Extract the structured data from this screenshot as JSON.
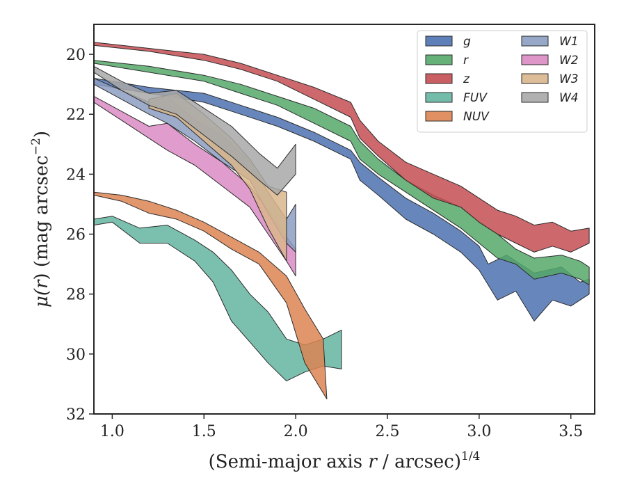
{
  "chart_data": {
    "type": "area",
    "title": "",
    "xlabel_parts": [
      "(Semi-major axis ",
      "r",
      " / arcsec)",
      "1/4"
    ],
    "ylabel_parts": [
      "μ(",
      "r",
      ") (mag arcsec",
      "−2",
      ")"
    ],
    "xlim": [
      0.9,
      3.63
    ],
    "ylim": [
      32,
      19
    ],
    "y_inverted": true,
    "xticks": [
      1.0,
      1.5,
      2.0,
      2.5,
      3.0,
      3.5
    ],
    "xtick_labels": [
      "1.0",
      "1.5",
      "2.0",
      "2.5",
      "3.0",
      "3.5"
    ],
    "yticks": [
      20,
      22,
      24,
      26,
      28,
      30,
      32
    ],
    "ytick_labels": [
      "20",
      "22",
      "24",
      "26",
      "28",
      "30",
      "32"
    ],
    "grid": false,
    "legend": {
      "location": "upper right",
      "columns": 2
    },
    "series": [
      {
        "name": "g",
        "color": "#4c72b0",
        "upper": [
          [
            0.9,
            20.8
          ],
          [
            1.2,
            21.1
          ],
          [
            1.5,
            21.3
          ],
          [
            1.7,
            21.7
          ],
          [
            1.9,
            22.1
          ],
          [
            2.1,
            22.6
          ],
          [
            2.3,
            23.2
          ],
          [
            2.35,
            23.6
          ],
          [
            2.45,
            24.1
          ],
          [
            2.6,
            24.8
          ],
          [
            2.75,
            25.3
          ],
          [
            2.9,
            25.9
          ],
          [
            3.0,
            26.4
          ],
          [
            3.05,
            27.0
          ],
          [
            3.15,
            26.7
          ],
          [
            3.3,
            27.3
          ],
          [
            3.45,
            27.1
          ],
          [
            3.55,
            27.6
          ],
          [
            3.6,
            27.5
          ]
        ],
        "lower": [
          [
            0.9,
            21.0
          ],
          [
            1.2,
            21.3
          ],
          [
            1.5,
            21.6
          ],
          [
            1.7,
            22.0
          ],
          [
            1.9,
            22.4
          ],
          [
            2.1,
            22.9
          ],
          [
            2.3,
            23.5
          ],
          [
            2.35,
            24.2
          ],
          [
            2.45,
            24.7
          ],
          [
            2.6,
            25.5
          ],
          [
            2.75,
            26.0
          ],
          [
            2.9,
            26.6
          ],
          [
            3.0,
            27.2
          ],
          [
            3.1,
            28.2
          ],
          [
            3.2,
            27.9
          ],
          [
            3.3,
            28.9
          ],
          [
            3.4,
            28.2
          ],
          [
            3.5,
            28.4
          ],
          [
            3.6,
            28.0
          ]
        ]
      },
      {
        "name": "r",
        "color": "#55a868",
        "upper": [
          [
            0.9,
            20.2
          ],
          [
            1.2,
            20.4
          ],
          [
            1.5,
            20.7
          ],
          [
            1.7,
            21.0
          ],
          [
            1.9,
            21.4
          ],
          [
            2.1,
            21.8
          ],
          [
            2.3,
            22.4
          ],
          [
            2.35,
            22.9
          ],
          [
            2.45,
            23.5
          ],
          [
            2.6,
            24.2
          ],
          [
            2.75,
            24.7
          ],
          [
            2.9,
            25.1
          ],
          [
            3.0,
            25.6
          ],
          [
            3.1,
            26.0
          ],
          [
            3.2,
            26.5
          ],
          [
            3.3,
            26.8
          ],
          [
            3.45,
            26.7
          ],
          [
            3.55,
            26.9
          ],
          [
            3.6,
            27.1
          ]
        ],
        "lower": [
          [
            0.9,
            20.3
          ],
          [
            1.2,
            20.6
          ],
          [
            1.5,
            20.9
          ],
          [
            1.7,
            21.3
          ],
          [
            1.9,
            21.7
          ],
          [
            2.1,
            22.3
          ],
          [
            2.3,
            22.9
          ],
          [
            2.35,
            23.5
          ],
          [
            2.45,
            24.0
          ],
          [
            2.6,
            24.6
          ],
          [
            2.75,
            25.2
          ],
          [
            2.9,
            25.8
          ],
          [
            3.0,
            26.3
          ],
          [
            3.1,
            26.8
          ],
          [
            3.2,
            27.0
          ],
          [
            3.3,
            27.5
          ],
          [
            3.45,
            27.3
          ],
          [
            3.55,
            27.5
          ],
          [
            3.6,
            27.7
          ]
        ]
      },
      {
        "name": "z",
        "color": "#c44e52",
        "upper": [
          [
            0.9,
            19.6
          ],
          [
            1.2,
            19.8
          ],
          [
            1.5,
            20.0
          ],
          [
            1.7,
            20.3
          ],
          [
            1.9,
            20.7
          ],
          [
            2.1,
            21.1
          ],
          [
            2.3,
            21.6
          ],
          [
            2.35,
            22.2
          ],
          [
            2.45,
            22.9
          ],
          [
            2.6,
            23.6
          ],
          [
            2.75,
            24.0
          ],
          [
            2.9,
            24.4
          ],
          [
            3.0,
            24.8
          ],
          [
            3.1,
            25.2
          ],
          [
            3.2,
            25.4
          ],
          [
            3.3,
            25.7
          ],
          [
            3.4,
            25.6
          ],
          [
            3.5,
            25.9
          ],
          [
            3.6,
            25.8
          ]
        ],
        "lower": [
          [
            0.9,
            19.7
          ],
          [
            1.2,
            19.9
          ],
          [
            1.5,
            20.2
          ],
          [
            1.7,
            20.5
          ],
          [
            1.9,
            20.9
          ],
          [
            2.1,
            21.5
          ],
          [
            2.3,
            22.1
          ],
          [
            2.35,
            22.8
          ],
          [
            2.45,
            23.4
          ],
          [
            2.6,
            24.2
          ],
          [
            2.75,
            24.8
          ],
          [
            2.9,
            25.1
          ],
          [
            3.0,
            25.6
          ],
          [
            3.1,
            26.0
          ],
          [
            3.2,
            26.3
          ],
          [
            3.3,
            26.6
          ],
          [
            3.4,
            26.4
          ],
          [
            3.5,
            26.6
          ],
          [
            3.6,
            26.3
          ]
        ]
      },
      {
        "name": "FUV",
        "color": "#64b5a0",
        "upper": [
          [
            0.9,
            25.5
          ],
          [
            1.0,
            25.4
          ],
          [
            1.15,
            25.8
          ],
          [
            1.3,
            25.7
          ],
          [
            1.45,
            26.2
          ],
          [
            1.55,
            26.6
          ],
          [
            1.65,
            27.2
          ],
          [
            1.75,
            28.0
          ],
          [
            1.85,
            28.6
          ],
          [
            1.95,
            29.5
          ],
          [
            2.05,
            29.7
          ],
          [
            2.15,
            29.5
          ],
          [
            2.25,
            29.2
          ]
        ],
        "lower": [
          [
            0.9,
            25.7
          ],
          [
            1.0,
            25.6
          ],
          [
            1.15,
            26.3
          ],
          [
            1.3,
            26.3
          ],
          [
            1.45,
            26.9
          ],
          [
            1.55,
            27.6
          ],
          [
            1.65,
            28.9
          ],
          [
            1.75,
            29.6
          ],
          [
            1.85,
            30.3
          ],
          [
            1.95,
            30.9
          ],
          [
            2.05,
            30.6
          ],
          [
            2.15,
            30.4
          ],
          [
            2.25,
            30.5
          ]
        ]
      },
      {
        "name": "NUV",
        "color": "#dd8452",
        "upper": [
          [
            0.9,
            24.6
          ],
          [
            1.05,
            24.7
          ],
          [
            1.2,
            24.9
          ],
          [
            1.35,
            25.2
          ],
          [
            1.5,
            25.6
          ],
          [
            1.65,
            26.1
          ],
          [
            1.8,
            26.6
          ],
          [
            1.95,
            27.4
          ],
          [
            2.05,
            28.5
          ],
          [
            2.15,
            29.5
          ]
        ],
        "lower": [
          [
            0.9,
            24.7
          ],
          [
            1.05,
            24.9
          ],
          [
            1.2,
            25.3
          ],
          [
            1.35,
            25.5
          ],
          [
            1.5,
            25.9
          ],
          [
            1.65,
            26.5
          ],
          [
            1.8,
            27.0
          ],
          [
            1.95,
            28.3
          ],
          [
            2.05,
            30.3
          ],
          [
            2.17,
            31.5
          ]
        ]
      },
      {
        "name": "W1",
        "color": "#8c9dc2",
        "upper": [
          [
            0.9,
            20.8
          ],
          [
            1.05,
            21.2
          ],
          [
            1.2,
            21.6
          ],
          [
            1.3,
            21.4
          ],
          [
            1.45,
            22.2
          ],
          [
            1.6,
            22.7
          ],
          [
            1.75,
            23.6
          ],
          [
            1.85,
            24.6
          ],
          [
            1.95,
            25.5
          ],
          [
            2.0,
            25.0
          ]
        ],
        "lower": [
          [
            0.9,
            21.0
          ],
          [
            1.05,
            21.5
          ],
          [
            1.2,
            22.0
          ],
          [
            1.3,
            22.3
          ],
          [
            1.45,
            22.9
          ],
          [
            1.6,
            23.6
          ],
          [
            1.75,
            24.2
          ],
          [
            1.85,
            25.3
          ],
          [
            1.95,
            26.3
          ],
          [
            2.0,
            26.6
          ]
        ]
      },
      {
        "name": "W2",
        "color": "#da8bc3",
        "upper": [
          [
            0.9,
            21.4
          ],
          [
            1.05,
            21.9
          ],
          [
            1.2,
            22.4
          ],
          [
            1.3,
            22.3
          ],
          [
            1.45,
            23.0
          ],
          [
            1.6,
            23.6
          ],
          [
            1.75,
            24.4
          ],
          [
            1.85,
            25.2
          ],
          [
            1.95,
            26.1
          ],
          [
            2.0,
            26.5
          ]
        ],
        "lower": [
          [
            0.9,
            21.6
          ],
          [
            1.05,
            22.2
          ],
          [
            1.2,
            22.8
          ],
          [
            1.3,
            23.2
          ],
          [
            1.45,
            23.7
          ],
          [
            1.6,
            24.4
          ],
          [
            1.75,
            25.1
          ],
          [
            1.85,
            26.0
          ],
          [
            1.95,
            26.9
          ],
          [
            2.0,
            27.4
          ]
        ]
      },
      {
        "name": "W3",
        "color": "#d9b68c",
        "upper": [
          [
            1.2,
            21.5
          ],
          [
            1.35,
            21.3
          ],
          [
            1.5,
            22.0
          ],
          [
            1.65,
            22.8
          ],
          [
            1.75,
            23.5
          ],
          [
            1.85,
            24.4
          ],
          [
            1.95,
            24.6
          ]
        ],
        "lower": [
          [
            1.2,
            21.8
          ],
          [
            1.35,
            22.1
          ],
          [
            1.5,
            22.9
          ],
          [
            1.65,
            23.7
          ],
          [
            1.75,
            24.5
          ],
          [
            1.85,
            25.8
          ],
          [
            1.95,
            26.9
          ]
        ]
      },
      {
        "name": "W4",
        "color": "#a8a8a8",
        "upper": [
          [
            0.9,
            20.4
          ],
          [
            1.05,
            20.9
          ],
          [
            1.2,
            21.3
          ],
          [
            1.35,
            21.2
          ],
          [
            1.5,
            21.8
          ],
          [
            1.65,
            22.4
          ],
          [
            1.8,
            23.3
          ],
          [
            1.9,
            23.8
          ],
          [
            2.0,
            23.0
          ]
        ],
        "lower": [
          [
            0.9,
            20.6
          ],
          [
            1.05,
            21.2
          ],
          [
            1.2,
            21.7
          ],
          [
            1.35,
            22.0
          ],
          [
            1.5,
            22.7
          ],
          [
            1.65,
            23.4
          ],
          [
            1.8,
            24.2
          ],
          [
            1.9,
            24.7
          ],
          [
            2.0,
            24.0
          ]
        ]
      }
    ]
  }
}
